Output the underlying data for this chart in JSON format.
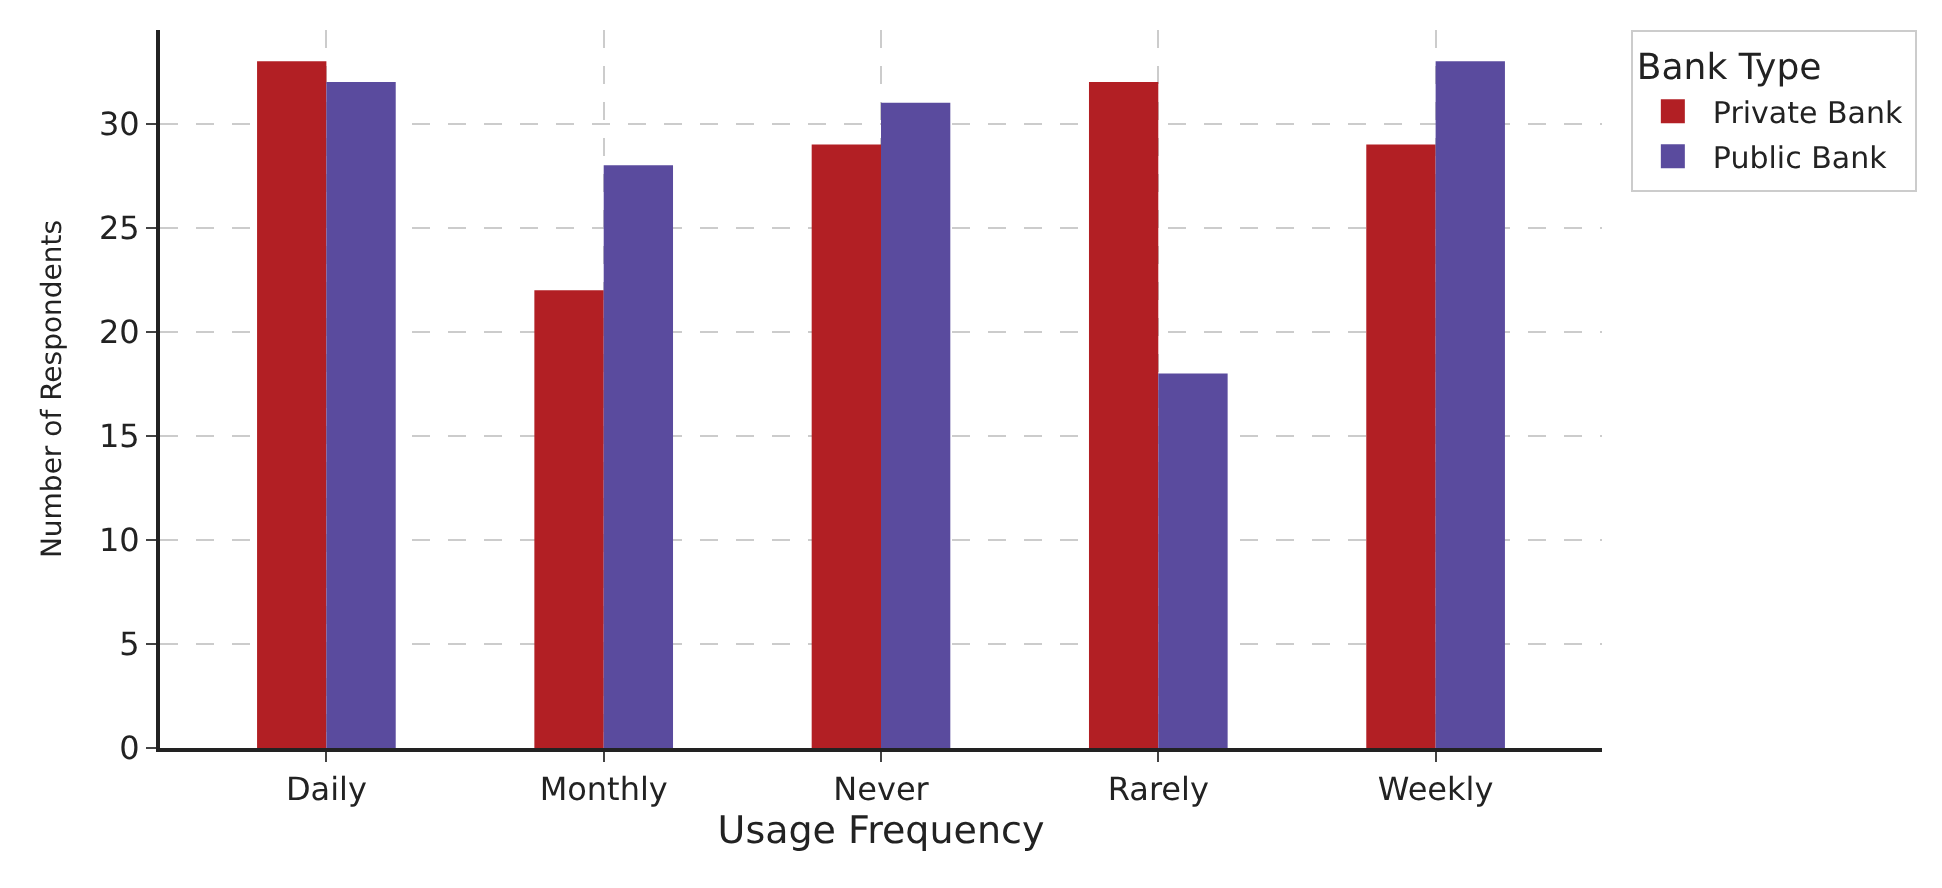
{
  "chart_data": {
    "type": "bar",
    "xlabel": "Usage Frequency",
    "ylabel": "Number of Respondents",
    "legend_title": "Bank Type",
    "categories": [
      "Daily",
      "Monthly",
      "Never",
      "Rarely",
      "Weekly"
    ],
    "series": [
      {
        "name": "Private Bank",
        "color": "#b21f24",
        "values": [
          33,
          22,
          29,
          32,
          29
        ]
      },
      {
        "name": "Public Bank",
        "color": "#5a4b9e",
        "values": [
          32,
          28,
          31,
          18,
          33
        ]
      }
    ],
    "ylim": [
      0,
      34.5
    ],
    "yticks": [
      0,
      5,
      10,
      15,
      20,
      25,
      30
    ],
    "grid": true,
    "legend": "top right"
  }
}
